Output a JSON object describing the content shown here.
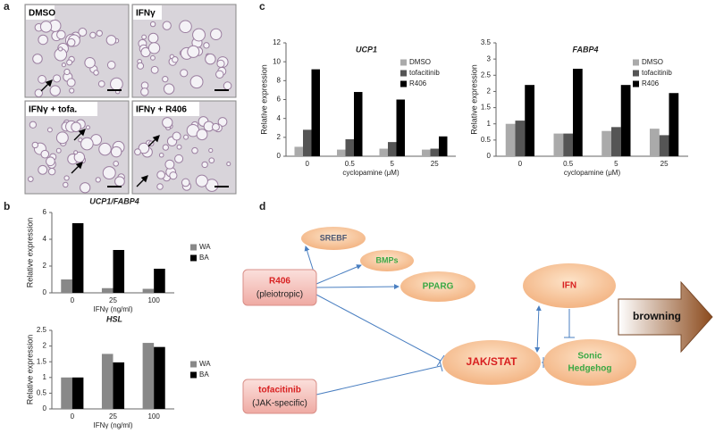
{
  "panel_labels": [
    "a",
    "b",
    "c",
    "d"
  ],
  "images": [
    "DMSO",
    "IFNγ",
    "IFNγ + tofa.",
    "IFNγ + R406"
  ],
  "chart_data": [
    {
      "type": "bar",
      "title": "UCP1",
      "x_label": "cyclopamine (μM)",
      "y_label": "Relative expression",
      "categories": [
        "0",
        "0.5",
        "5",
        "25"
      ],
      "series": [
        {
          "name": "DMSO",
          "color": "#aaaaaa",
          "values": [
            1.0,
            0.7,
            0.8,
            0.7
          ]
        },
        {
          "name": "tofacitinib",
          "color": "#555555",
          "values": [
            2.8,
            1.8,
            1.5,
            0.8
          ]
        },
        {
          "name": "R406",
          "color": "#000000",
          "values": [
            9.2,
            6.8,
            6.0,
            2.1
          ]
        }
      ],
      "ylim": [
        0,
        12
      ],
      "yticks": [
        0,
        2,
        4,
        6,
        8,
        10,
        12
      ],
      "legend": "upper right"
    },
    {
      "type": "bar",
      "title": "FABP4",
      "x_label": "cyclopamine (μM)",
      "y_label": "Relative expression",
      "categories": [
        "0",
        "0.5",
        "5",
        "25"
      ],
      "series": [
        {
          "name": "DMSO",
          "color": "#aaaaaa",
          "values": [
            1.0,
            0.7,
            0.78,
            0.85
          ]
        },
        {
          "name": "tofacitinib",
          "color": "#555555",
          "values": [
            1.1,
            0.7,
            0.9,
            0.65
          ]
        },
        {
          "name": "R406",
          "color": "#000000",
          "values": [
            2.2,
            2.7,
            2.2,
            1.95
          ]
        }
      ],
      "ylim": [
        0,
        3.5
      ],
      "yticks": [
        0,
        0.5,
        1,
        1.5,
        2,
        2.5,
        3,
        3.5
      ],
      "legend": "upper right"
    },
    {
      "type": "bar",
      "title": "UCP1/FABP4",
      "x_label": "IFNγ (ng/ml)",
      "y_label": "Relative  expression",
      "categories": [
        "0",
        "25",
        "100"
      ],
      "series": [
        {
          "name": "WA",
          "color": "#888888",
          "values": [
            1.0,
            0.35,
            0.3
          ]
        },
        {
          "name": "BA",
          "color": "#000000",
          "values": [
            5.2,
            3.2,
            1.8
          ]
        }
      ],
      "ylim": [
        0,
        6
      ],
      "yticks": [
        0,
        2,
        4,
        6
      ],
      "legend": "right"
    },
    {
      "type": "bar",
      "title": "HSL",
      "x_label": "IFNγ (ng/ml)",
      "y_label": "Relative  expression",
      "categories": [
        "0",
        "25",
        "100"
      ],
      "series": [
        {
          "name": "WA",
          "color": "#888888",
          "values": [
            1.0,
            1.75,
            2.1
          ]
        },
        {
          "name": "BA",
          "color": "#000000",
          "values": [
            1.0,
            1.48,
            1.97
          ]
        }
      ],
      "ylim": [
        0,
        2.5
      ],
      "yticks": [
        0,
        0.5,
        1,
        1.5,
        2,
        2.5
      ],
      "legend": "right"
    }
  ],
  "diagram": {
    "nodes": [
      {
        "text": "SREBF"
      },
      {
        "text": "BMPs"
      },
      {
        "text": "PPARG"
      },
      {
        "text": "R406",
        "sub": "(pleiotropic)"
      },
      {
        "text": "IFN"
      },
      {
        "text": "JAK/STAT"
      },
      {
        "text": "Sonic",
        "sub": "Hedgehog"
      },
      {
        "text": "tofacitinib",
        "sub": "(JAK-specific)"
      },
      {
        "text": "browning"
      }
    ]
  }
}
